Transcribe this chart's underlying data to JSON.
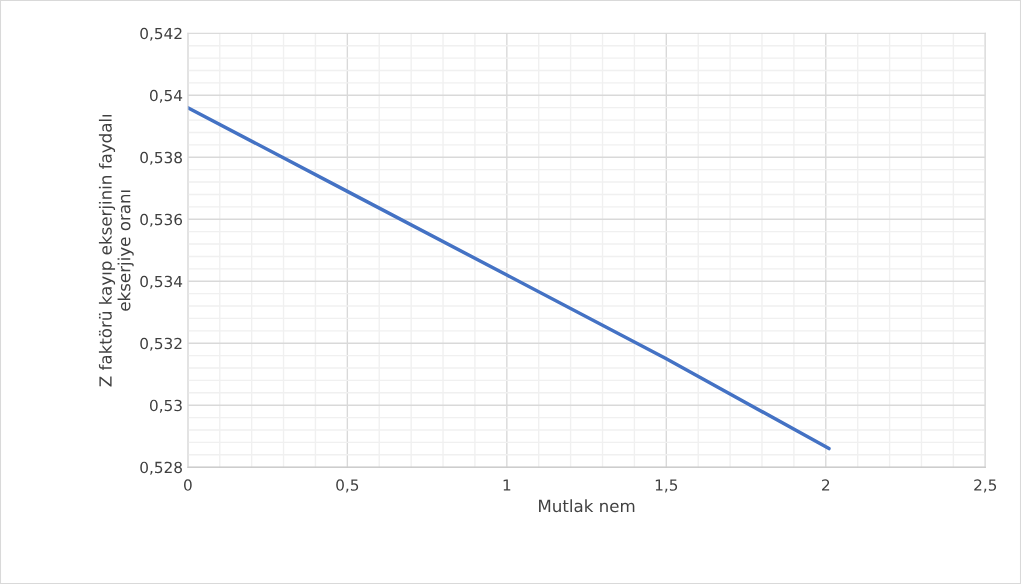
{
  "chart_data": {
    "type": "line",
    "xlabel": "Mutlak nem",
    "ylabel": "Z faktörü kayıp ekserjinin faydalı\nekserjiye oranı",
    "x": [
      0,
      0.5,
      1,
      1.5,
      2.01
    ],
    "series": [
      {
        "color": "#4472c4",
        "values": [
          0.5396,
          0.5369,
          0.5342,
          0.5315,
          0.5286
        ]
      }
    ],
    "xlim": [
      0,
      2.5
    ],
    "ylim": [
      0.528,
      0.542
    ],
    "xticks": [
      0,
      {
        "value": 0.5,
        "label": "0,5"
      },
      1,
      {
        "value": 1.5,
        "label": "1,5"
      },
      2,
      {
        "value": 2.5,
        "label": "2,5"
      }
    ],
    "yticks": [
      {
        "value": 0.528,
        "label": "0,528"
      },
      {
        "value": 0.53,
        "label": "0,53"
      },
      {
        "value": 0.532,
        "label": "0,532"
      },
      {
        "value": 0.534,
        "label": "0,534"
      },
      {
        "value": 0.536,
        "label": "0,536"
      },
      {
        "value": 0.538,
        "label": "0,538"
      },
      {
        "value": 0.54,
        "label": "0,54"
      },
      {
        "value": 0.542,
        "label": "0,542"
      }
    ],
    "grid": true,
    "marker": "none",
    "line_style": "solid",
    "legend": false
  }
}
